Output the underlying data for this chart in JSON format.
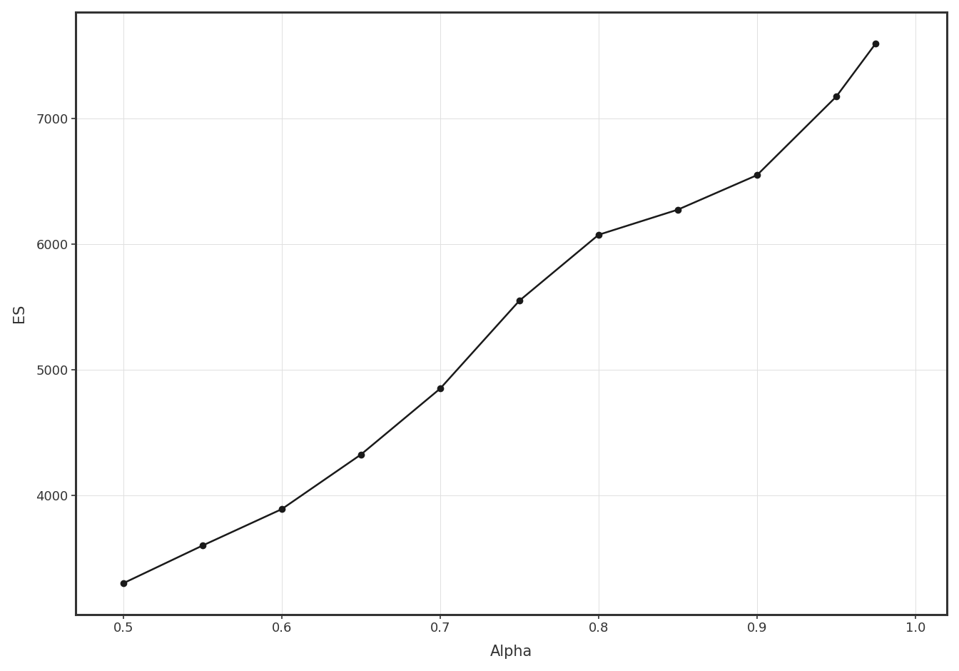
{
  "alpha": [
    0.5,
    0.55,
    0.6,
    0.65,
    0.7,
    0.75,
    0.8,
    0.85,
    0.9,
    0.95,
    0.975
  ],
  "es": [
    3300,
    3600,
    3890,
    4325,
    4850,
    5550,
    6075,
    6275,
    6550,
    7175,
    7600
  ],
  "xlabel": "Alpha",
  "ylabel": "ES",
  "line_color": "#1a1a1a",
  "marker_color": "#1a1a1a",
  "background_color": "#ffffff",
  "panel_background": "#ffffff",
  "grid_color": "#e0e0e0",
  "axis_color": "#333333",
  "xlim": [
    0.47,
    1.02
  ],
  "ylim": [
    3050,
    7850
  ],
  "xticks": [
    0.5,
    0.6,
    0.7,
    0.8,
    0.9,
    1.0
  ],
  "yticks": [
    4000,
    5000,
    6000,
    7000
  ],
  "xlabel_fontsize": 15,
  "ylabel_fontsize": 15,
  "tick_fontsize": 13,
  "marker_size": 6,
  "line_width": 1.8,
  "spine_linewidth": 2.2,
  "spine_color": "#333333"
}
